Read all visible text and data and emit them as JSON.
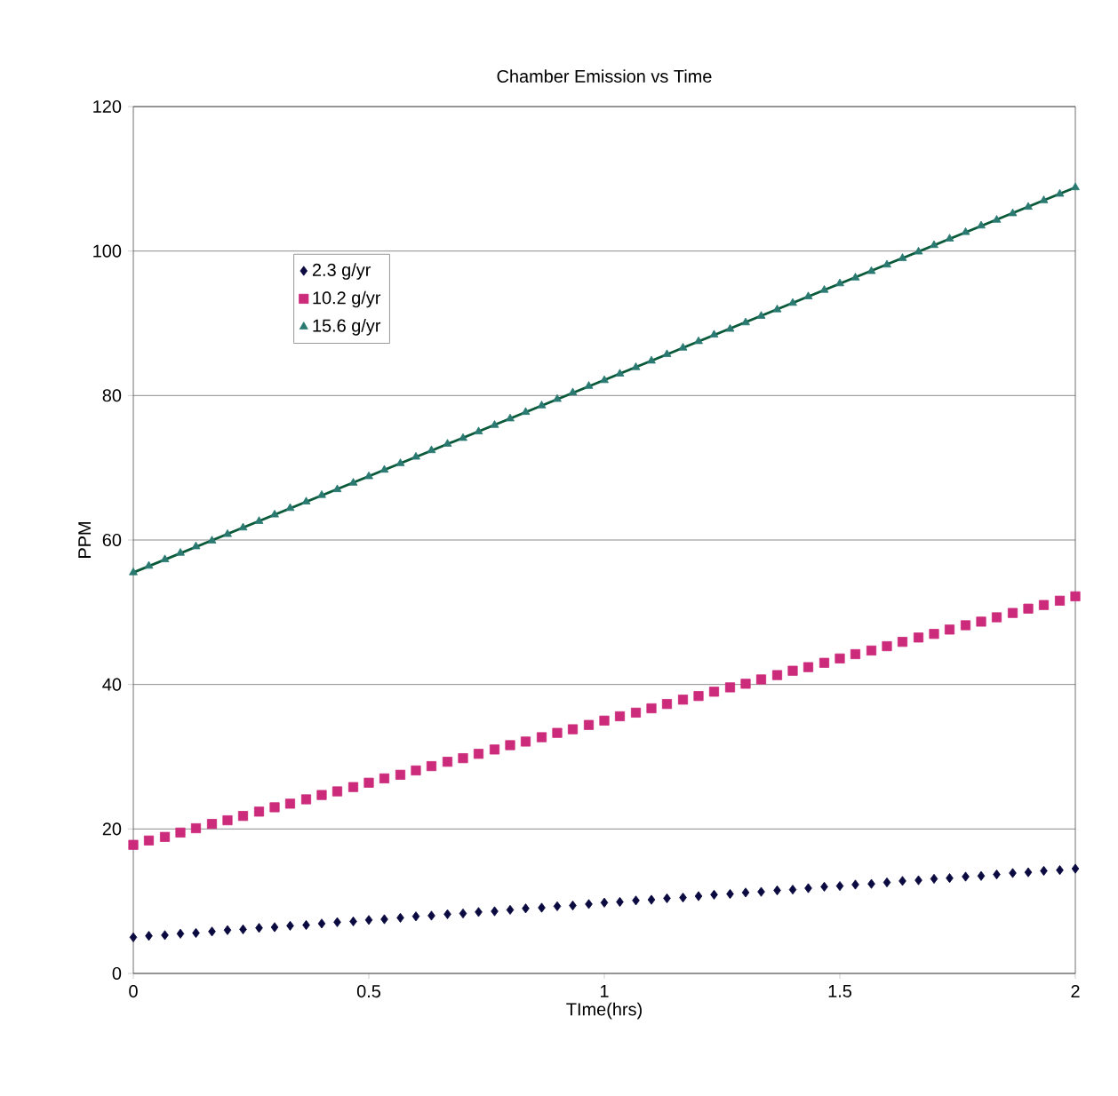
{
  "chart_data": {
    "type": "scatter",
    "title": "Chamber Emission vs Time",
    "xlabel": "TIme(hrs)",
    "ylabel": "PPM",
    "x": [
      0,
      0.033,
      0.067,
      0.1,
      0.133,
      0.167,
      0.2,
      0.233,
      0.267,
      0.3,
      0.333,
      0.367,
      0.4,
      0.433,
      0.467,
      0.5,
      0.533,
      0.567,
      0.6,
      0.633,
      0.667,
      0.7,
      0.733,
      0.767,
      0.8,
      0.833,
      0.867,
      0.9,
      0.933,
      0.967,
      1,
      1.033,
      1.067,
      1.1,
      1.133,
      1.167,
      1.2,
      1.233,
      1.267,
      1.3,
      1.333,
      1.367,
      1.4,
      1.433,
      1.467,
      1.5,
      1.533,
      1.567,
      1.6,
      1.633,
      1.667,
      1.7,
      1.733,
      1.767,
      1.8,
      1.833,
      1.867,
      1.9,
      1.933,
      1.967,
      2
    ],
    "xlim": [
      0,
      2
    ],
    "ylim": [
      0,
      120
    ],
    "xticks": [
      0,
      0.5,
      1,
      1.5,
      2
    ],
    "yticks": [
      0,
      20,
      40,
      60,
      80,
      100,
      120
    ],
    "grid": "y",
    "legend": "top left",
    "series": [
      {
        "name": "2.3 g/yr",
        "color": "#0a0a40",
        "marker": "diamond",
        "values": [
          5.0,
          5.2,
          5.3,
          5.5,
          5.6,
          5.8,
          6.0,
          6.1,
          6.3,
          6.4,
          6.6,
          6.7,
          6.9,
          7.1,
          7.2,
          7.4,
          7.5,
          7.7,
          7.9,
          8.0,
          8.2,
          8.3,
          8.5,
          8.6,
          8.8,
          9.0,
          9.1,
          9.3,
          9.4,
          9.6,
          9.8,
          9.9,
          10.1,
          10.2,
          10.4,
          10.5,
          10.7,
          10.9,
          11.0,
          11.2,
          11.3,
          11.5,
          11.6,
          11.8,
          12.0,
          12.1,
          12.3,
          12.4,
          12.6,
          12.8,
          12.9,
          13.1,
          13.2,
          13.4,
          13.5,
          13.7,
          13.9,
          14.0,
          14.2,
          14.3,
          14.5
        ]
      },
      {
        "name": "10.2 g/yr",
        "color": "#cc2a7a",
        "marker": "square",
        "values": [
          17.8,
          18.4,
          18.9,
          19.5,
          20.1,
          20.7,
          21.2,
          21.8,
          22.4,
          23.0,
          23.5,
          24.1,
          24.7,
          25.2,
          25.8,
          26.4,
          27.0,
          27.5,
          28.1,
          28.7,
          29.3,
          29.8,
          30.4,
          31.0,
          31.6,
          32.1,
          32.7,
          33.3,
          33.8,
          34.4,
          35.0,
          35.6,
          36.1,
          36.7,
          37.3,
          37.9,
          38.4,
          39.0,
          39.6,
          40.1,
          40.7,
          41.3,
          41.9,
          42.4,
          43.0,
          43.6,
          44.2,
          44.7,
          45.3,
          45.9,
          46.5,
          47.0,
          47.6,
          48.2,
          48.7,
          49.3,
          49.9,
          50.5,
          51.0,
          51.6,
          52.2
        ]
      },
      {
        "name": "15.6 g/yr",
        "color": "#2a7a72",
        "marker": "triangle",
        "values": [
          55.5,
          56.4,
          57.3,
          58.2,
          59.1,
          59.9,
          60.8,
          61.7,
          62.6,
          63.5,
          64.4,
          65.3,
          66.2,
          67.0,
          67.9,
          68.8,
          69.7,
          70.6,
          71.5,
          72.4,
          73.3,
          74.1,
          75.0,
          75.9,
          76.8,
          77.7,
          78.6,
          79.5,
          80.4,
          81.3,
          82.1,
          83.0,
          83.9,
          84.8,
          85.7,
          86.6,
          87.5,
          88.4,
          89.2,
          90.1,
          91.0,
          91.9,
          92.8,
          93.7,
          94.6,
          95.5,
          96.3,
          97.2,
          98.1,
          99.0,
          99.9,
          100.8,
          101.7,
          102.6,
          103.5,
          104.3,
          105.2,
          106.1,
          107.0,
          107.9,
          108.8
        ]
      },
      {
        "type": "line",
        "color": "#0a5a3a",
        "marker": "none",
        "x": [
          0,
          2
        ],
        "values": [
          55.5,
          108.8
        ]
      }
    ]
  }
}
